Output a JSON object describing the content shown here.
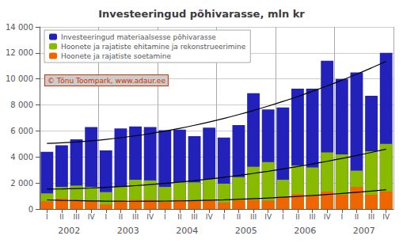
{
  "chart_data": {
    "type": "bar",
    "title": "Investeeringud põhivarasse, mln kr",
    "categories": [
      "I",
      "II",
      "III",
      "IV",
      "I",
      "II",
      "III",
      "IV",
      "I",
      "II",
      "III",
      "IV",
      "I",
      "II",
      "III",
      "IV",
      "I",
      "II",
      "III",
      "IV",
      "I",
      "II",
      "III",
      "IV"
    ],
    "year_labels": [
      2002,
      2003,
      2004,
      2005,
      2006,
      2007
    ],
    "annotations": [
      "© Tõnu Toompark, www.adaur.ee"
    ],
    "stacked": false,
    "series": [
      {
        "name": "Investeeringud materiaalsesse põhivarasse",
        "color": "#2222bb",
        "values": [
          4400,
          4900,
          5350,
          6300,
          4500,
          6200,
          6350,
          6300,
          6050,
          6100,
          5600,
          6250,
          5500,
          6450,
          8900,
          7650,
          7800,
          9250,
          9250,
          11400,
          10000,
          10500,
          8700,
          12000
        ]
      },
      {
        "name": "Hoonete ja rajatiste ehitamine ja rekonstrueerimine",
        "color": "#88bb00",
        "values": [
          1200,
          1700,
          1800,
          1700,
          1300,
          1700,
          2250,
          2200,
          1700,
          2050,
          2050,
          2300,
          1950,
          2450,
          3250,
          3600,
          2250,
          3350,
          3200,
          4350,
          4200,
          2950,
          4450,
          5000
        ]
      },
      {
        "name": "Hoonete ja rajatiste soetamine",
        "color": "#ee6600",
        "values": [
          600,
          800,
          700,
          650,
          350,
          650,
          700,
          700,
          550,
          700,
          650,
          700,
          500,
          700,
          700,
          650,
          950,
          1150,
          1050,
          1350,
          1100,
          1700,
          1100,
          1350
        ]
      },
      {
        "type": "line",
        "color": "#000000",
        "values": [
          5038.77,
          5085.48,
          5152.88,
          5240.98,
          5349.76,
          5479.23,
          5629.4,
          5800.25,
          5991.79,
          6204.03,
          6436.95,
          6690.57,
          6964.87,
          7259.86,
          7575.55,
          7911.92,
          8268.99,
          8646.74,
          9045.19,
          9464.32,
          9904.15,
          10364.67,
          10845.87,
          11347.77
        ]
      },
      {
        "type": "line",
        "color": "#000000",
        "values": [
          1528.33,
          1546.52,
          1575.22,
          1614.41,
          1664.1,
          1724.29,
          1794.98,
          1876.16,
          1967.85,
          2070.03,
          2182.7,
          2305.88,
          2439.55,
          2583.73,
          2738.4,
          2903.56,
          3079.23,
          3265.39,
          3462.05,
          3669.21,
          3886.87,
          4115.02,
          4353.68,
          4602.83
        ]
      },
      {
        "type": "line",
        "color": "#000000",
        "values": [
          700.48,
          667.64,
          640.88,
          620.19,
          605.58,
          597.05,
          594.6,
          598.23,
          607.94,
          623.73,
          645.59,
          673.53,
          707.56,
          747.66,
          793.83,
          846.09,
          904.43,
          968.84,
          1039.34,
          1115.91,
          1198.56,
          1287.29,
          1382.1,
          1482.98
        ]
      }
    ],
    "ylim": [
      0,
      14000
    ],
    "yticks": [
      0,
      {
        "value": 2000,
        "label": "2 000"
      },
      {
        "value": 4000,
        "label": "4 000"
      },
      {
        "value": 6000,
        "label": "6 000"
      },
      {
        "value": 8000,
        "label": "8 000"
      },
      {
        "value": 10000,
        "label": "10 000"
      },
      {
        "value": 12000,
        "label": "12 000"
      },
      {
        "value": 14000,
        "label": "14 000"
      }
    ],
    "grid": true,
    "legend": "upper left"
  }
}
